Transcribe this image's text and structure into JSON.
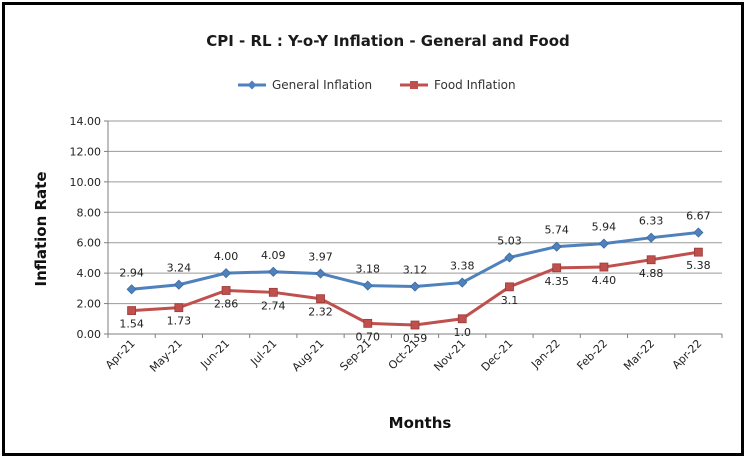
{
  "chart_data": {
    "type": "line",
    "title": "CPI - RL : Y-o-Y Inflation - General and Food",
    "xlabel": "Months",
    "ylabel": "Inflation Rate",
    "categories": [
      "Apr-21",
      "May-21",
      "Jun-21",
      "Jul-21",
      "Aug-21",
      "Sep-21",
      "Oct-21",
      "Nov-21",
      "Dec-21",
      "Jan-22",
      "Feb-22",
      "Mar-22",
      "Apr-22"
    ],
    "ylim": [
      0,
      14
    ],
    "yticks": [
      "0.00",
      "2.00",
      "4.00",
      "6.00",
      "8.00",
      "10.00",
      "12.00",
      "14.00"
    ],
    "grid": true,
    "legend_position": "top",
    "series": [
      {
        "name": "General Inflation",
        "color": "#4f81bd",
        "marker": "diamond",
        "values": [
          2.94,
          3.24,
          4.0,
          4.09,
          3.97,
          3.18,
          3.12,
          3.38,
          5.03,
          5.74,
          5.94,
          6.33,
          6.67
        ],
        "labels": [
          "2.94",
          "3.24",
          "4.00",
          "4.09",
          "3.97",
          "3.18",
          "3.12",
          "3.38",
          "5.03",
          "5.74",
          "5.94",
          "6.33",
          "6.67"
        ]
      },
      {
        "name": "Food Inflation",
        "color": "#c0504d",
        "marker": "square",
        "values": [
          1.54,
          1.73,
          2.86,
          2.74,
          2.32,
          0.7,
          0.59,
          1.0,
          3.1,
          4.35,
          4.4,
          4.88,
          5.38
        ],
        "labels": [
          "1.54",
          "1.73",
          "2.86",
          "2.74",
          "2.32",
          "0.70",
          "0.59",
          "1.0",
          "3.1",
          "4.35",
          "4.40",
          "4.88",
          "5.38"
        ]
      }
    ]
  }
}
